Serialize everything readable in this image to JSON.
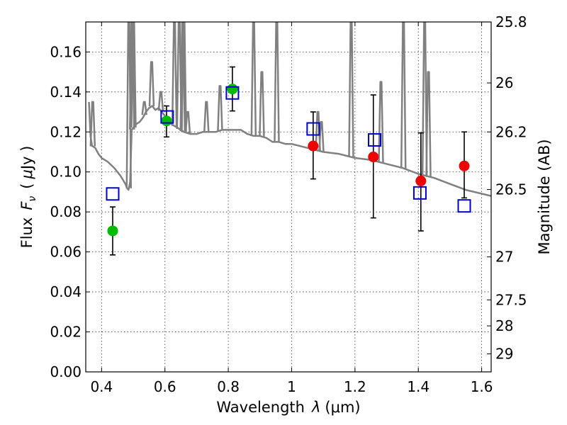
{
  "chart_data": {
    "type": "scatter",
    "xlabel_text": "Wavelength",
    "xlabel_symbol": "λ",
    "xlabel_unit": "(μm)",
    "ylabel_text": "Flux",
    "ylabel_symbol": "F",
    "ylabel_subscript": "ν",
    "ylabel_unit_open": "(",
    "ylabel_unit_mu": "μ",
    "ylabel_unit_rest": "Jy )",
    "y2label": "Magnitude (AB)",
    "xlim": [
      0.35,
      1.63
    ],
    "ylim": [
      0.0,
      0.175
    ],
    "x_ticks": [
      {
        "value": 0.4,
        "label": "0.4"
      },
      {
        "value": 0.6,
        "label": "0.6"
      },
      {
        "value": 0.8,
        "label": "0.8"
      },
      {
        "value": 1.0,
        "label": "1"
      },
      {
        "value": 1.2,
        "label": "1.2"
      },
      {
        "value": 1.4,
        "label": "1.4"
      },
      {
        "value": 1.6,
        "label": "1.6"
      }
    ],
    "y_ticks": [
      {
        "value": 0.0,
        "label": "0.00"
      },
      {
        "value": 0.02,
        "label": "0.02"
      },
      {
        "value": 0.04,
        "label": "0.04"
      },
      {
        "value": 0.06,
        "label": "0.06"
      },
      {
        "value": 0.08,
        "label": "0.08"
      },
      {
        "value": 0.1,
        "label": "0.10"
      },
      {
        "value": 0.12,
        "label": "0.12"
      },
      {
        "value": 0.14,
        "label": "0.14"
      },
      {
        "value": 0.16,
        "label": "0.16"
      }
    ],
    "y2_ticks": [
      {
        "flux": 0.175,
        "label": "25.8"
      },
      {
        "flux": 0.1445,
        "label": "26"
      },
      {
        "flux": 0.12,
        "label": "26.2"
      },
      {
        "flux": 0.0912,
        "label": "26.5"
      },
      {
        "flux": 0.0575,
        "label": "27"
      },
      {
        "flux": 0.036,
        "label": "27.5"
      },
      {
        "flux": 0.023,
        "label": "28"
      },
      {
        "flux": 0.009,
        "label": "29"
      }
    ],
    "series": [
      {
        "name": "model_spectrum",
        "kind": "line",
        "color": "#808080",
        "x": [
          0.36,
          0.365,
          0.37,
          0.38,
          0.39,
          0.4,
          0.42,
          0.44,
          0.46,
          0.475,
          0.48,
          0.485,
          0.49,
          0.495,
          0.5,
          0.51,
          0.52,
          0.53,
          0.54,
          0.55,
          0.56,
          0.57,
          0.58,
          0.59,
          0.6,
          0.62,
          0.64,
          0.66,
          0.68,
          0.7,
          0.72,
          0.74,
          0.76,
          0.78,
          0.8,
          0.82,
          0.84,
          0.86,
          0.88,
          0.9,
          0.92,
          0.94,
          0.96,
          0.98,
          1.0,
          1.05,
          1.1,
          1.15,
          1.2,
          1.25,
          1.3,
          1.35,
          1.4,
          1.45,
          1.5,
          1.55,
          1.63
        ],
        "y": [
          0.135,
          0.118,
          0.113,
          0.112,
          0.109,
          0.107,
          0.105,
          0.102,
          0.098,
          0.094,
          0.092,
          0.091,
          0.095,
          0.121,
          0.122,
          0.124,
          0.125,
          0.127,
          0.13,
          0.132,
          0.133,
          0.131,
          0.132,
          0.13,
          0.128,
          0.124,
          0.122,
          0.12,
          0.119,
          0.119,
          0.12,
          0.12,
          0.12,
          0.121,
          0.121,
          0.121,
          0.121,
          0.119,
          0.118,
          0.118,
          0.117,
          0.115,
          0.115,
          0.114,
          0.114,
          0.112,
          0.11,
          0.109,
          0.107,
          0.106,
          0.104,
          0.102,
          0.099,
          0.097,
          0.094,
          0.091,
          0.088
        ]
      },
      {
        "name": "emission_lines",
        "kind": "spikes",
        "color": "#808080",
        "lines": [
          {
            "x": 0.372,
            "peak": 0.135
          },
          {
            "x": 0.486,
            "peak": 0.175
          },
          {
            "x": 0.496,
            "peak": 0.175
          },
          {
            "x": 0.501,
            "peak": 0.175
          },
          {
            "x": 0.535,
            "peak": 0.135
          },
          {
            "x": 0.558,
            "peak": 0.155
          },
          {
            "x": 0.587,
            "peak": 0.14
          },
          {
            "x": 0.63,
            "peak": 0.175
          },
          {
            "x": 0.645,
            "peak": 0.175
          },
          {
            "x": 0.656,
            "peak": 0.175
          },
          {
            "x": 0.66,
            "peak": 0.175
          },
          {
            "x": 0.672,
            "peak": 0.13
          },
          {
            "x": 0.731,
            "peak": 0.135
          },
          {
            "x": 0.774,
            "peak": 0.143
          },
          {
            "x": 0.88,
            "peak": 0.175
          },
          {
            "x": 0.906,
            "peak": 0.15
          },
          {
            "x": 0.953,
            "peak": 0.175
          },
          {
            "x": 1.083,
            "peak": 0.13
          },
          {
            "x": 1.094,
            "peak": 0.125
          },
          {
            "x": 1.188,
            "peak": 0.175
          },
          {
            "x": 1.282,
            "peak": 0.145
          },
          {
            "x": 1.353,
            "peak": 0.175
          },
          {
            "x": 1.42,
            "peak": 0.175
          },
          {
            "x": 1.432,
            "peak": 0.15
          }
        ]
      },
      {
        "name": "green_observed",
        "kind": "points",
        "color": "#00bb00",
        "x": [
          0.435,
          0.605,
          0.813
        ],
        "y": [
          0.0705,
          0.1255,
          0.1415
        ],
        "err_low": [
          0.0585,
          0.1175,
          0.1305
        ],
        "err_high": [
          0.0825,
          0.133,
          0.1525
        ]
      },
      {
        "name": "red_observed",
        "kind": "points",
        "color": "#ee0000",
        "x": [
          1.068,
          1.258,
          1.408,
          1.545
        ],
        "y": [
          0.113,
          0.1075,
          0.0955,
          0.103
        ],
        "err_low": [
          0.0965,
          0.077,
          0.0705,
          0.087
        ],
        "err_high": [
          0.13,
          0.1385,
          0.1195,
          0.12
        ]
      },
      {
        "name": "model_synthetic",
        "kind": "open-squares",
        "color": "#0000cc",
        "x": [
          0.435,
          0.607,
          0.813,
          1.068,
          1.262,
          1.405,
          1.545
        ],
        "y": [
          0.089,
          0.1275,
          0.1395,
          0.1215,
          0.116,
          0.0895,
          0.083
        ]
      }
    ]
  }
}
